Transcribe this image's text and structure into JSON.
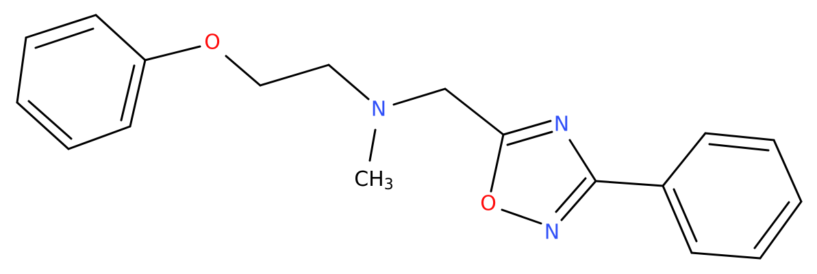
{
  "atoms": [
    {
      "label": "O"
    },
    {
      "label": "N"
    },
    {
      "label": "CH",
      "subscript": "3"
    },
    {
      "label": "N"
    },
    {
      "label": "O"
    },
    {
      "label": "N"
    }
  ]
}
